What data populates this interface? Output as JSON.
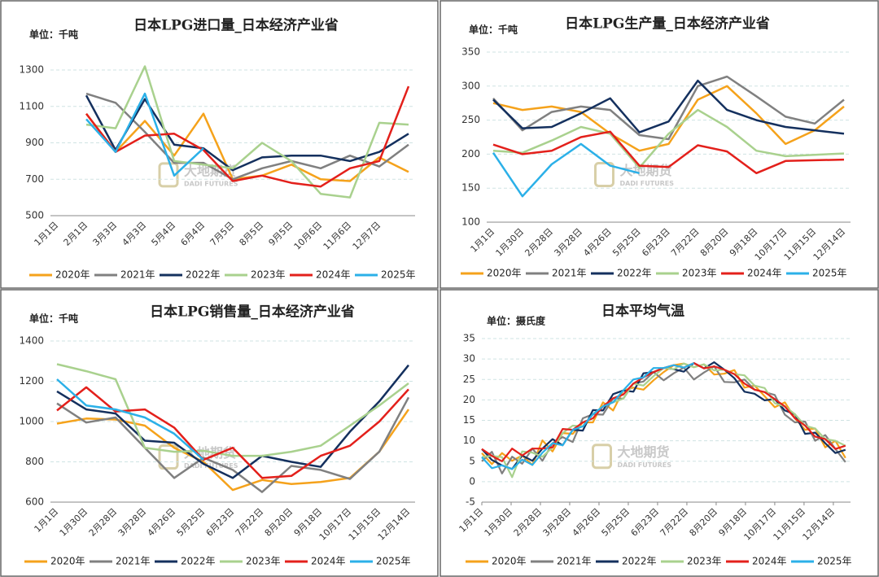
{
  "chart_data": [
    {
      "type": "line",
      "title": "日本LPG进口量_日本经济产业省",
      "unit": "单位：千吨",
      "watermark": "大地期货",
      "watermark_en": "DADI FUTURES",
      "categories": [
        "1月1日",
        "2月1日",
        "3月3日",
        "4月3日",
        "5月4日",
        "6月4日",
        "7月5日",
        "8月5日",
        "9月5日",
        "10月6日",
        "11月6日",
        "12月7日",
        null
      ],
      "ylim": [
        500,
        1300
      ],
      "yticks": [
        500,
        700,
        900,
        1100,
        1300
      ],
      "grid": true,
      "series": [
        {
          "name": "2020年",
          "color": "#f5a21b",
          "values": [
            null,
            1060,
            850,
            1020,
            830,
            1060,
            700,
            720,
            780,
            700,
            690,
            820,
            740
          ]
        },
        {
          "name": "2021年",
          "color": "#808080",
          "values": [
            null,
            1170,
            1120,
            960,
            790,
            790,
            700,
            760,
            800,
            760,
            830,
            770,
            890
          ]
        },
        {
          "name": "2022年",
          "color": "#14305e",
          "values": [
            null,
            1160,
            860,
            1140,
            890,
            870,
            750,
            820,
            830,
            830,
            800,
            850,
            950
          ]
        },
        {
          "name": "2023年",
          "color": "#a9d18e",
          "values": [
            null,
            1000,
            980,
            1320,
            800,
            780,
            760,
            900,
            800,
            620,
            600,
            1010,
            1000
          ]
        },
        {
          "name": "2024年",
          "color": "#e3201b",
          "values": [
            null,
            1060,
            850,
            940,
            950,
            860,
            690,
            720,
            680,
            660,
            760,
            800,
            1210
          ]
        },
        {
          "name": "2025年",
          "color": "#2bb0e8",
          "values": [
            null,
            1030,
            850,
            1170,
            720,
            870,
            null,
            null,
            null,
            null,
            null,
            null,
            null
          ]
        }
      ]
    },
    {
      "type": "line",
      "title": "日本LPG生产量_日本经济产业省",
      "unit": "单位：千吨",
      "watermark": "大地期货",
      "watermark_en": "DADI FUTURES",
      "categories": [
        "1月1日",
        "1月30日",
        "2月28日",
        "3月28日",
        "4月26日",
        "5月25日",
        "6月23日",
        "7月22日",
        "8月20日",
        "9月18日",
        "10月17日",
        "11月15日",
        "12月14日"
      ],
      "ylim": [
        100,
        350
      ],
      "yticks": [
        100,
        150,
        200,
        250,
        300,
        350
      ],
      "grid": true,
      "series": [
        {
          "name": "2020年",
          "color": "#f5a21b",
          "values": [
            275,
            265,
            270,
            262,
            230,
            205,
            215,
            280,
            300,
            260,
            215,
            235,
            270
          ]
        },
        {
          "name": "2021年",
          "color": "#808080",
          "values": [
            282,
            235,
            262,
            270,
            265,
            228,
            222,
            300,
            314,
            285,
            255,
            245,
            280
          ]
        },
        {
          "name": "2022年",
          "color": "#14305e",
          "values": [
            280,
            238,
            240,
            260,
            282,
            232,
            248,
            308,
            265,
            250,
            240,
            235,
            230
          ]
        },
        {
          "name": "2023年",
          "color": "#a9d18e",
          "values": [
            205,
            202,
            220,
            240,
            230,
            180,
            230,
            265,
            240,
            205,
            197,
            199,
            201
          ]
        },
        {
          "name": "2024年",
          "color": "#e3201b",
          "values": [
            214,
            200,
            205,
            225,
            233,
            183,
            181,
            213,
            204,
            172,
            190,
            191,
            192
          ]
        },
        {
          "name": "2025年",
          "color": "#2bb0e8",
          "values": [
            202,
            138,
            185,
            215,
            183,
            172,
            null,
            null,
            null,
            null,
            null,
            null,
            null
          ]
        }
      ]
    },
    {
      "type": "line",
      "title": "日本LPG销售量_日本经济产业省",
      "unit": "单位：千吨",
      "watermark": "大地期货",
      "watermark_en": "DADI FUTURES",
      "categories": [
        "1月1日",
        "1月30日",
        "2月28日",
        "3月28日",
        "4月26日",
        "5月25日",
        "6月23日",
        "7月22日",
        "8月20日",
        "9月18日",
        "10月17日",
        "11月15日",
        "12月14日"
      ],
      "ylim": [
        600,
        1400
      ],
      "yticks": [
        600,
        800,
        1000,
        1200,
        1400
      ],
      "grid": true,
      "series": [
        {
          "name": "2020年",
          "color": "#f5a21b",
          "values": [
            990,
            1015,
            1010,
            980,
            870,
            800,
            660,
            710,
            690,
            700,
            720,
            850,
            1060
          ]
        },
        {
          "name": "2021年",
          "color": "#808080",
          "values": [
            1090,
            995,
            1020,
            870,
            720,
            820,
            760,
            650,
            780,
            760,
            715,
            850,
            1120
          ]
        },
        {
          "name": "2022年",
          "color": "#14305e",
          "values": [
            1150,
            1060,
            1040,
            905,
            895,
            790,
            720,
            830,
            800,
            775,
            950,
            1100,
            1280
          ]
        },
        {
          "name": "2023年",
          "color": "#a9d18e",
          "values": [
            1285,
            1250,
            1210,
            870,
            850,
            855,
            830,
            830,
            850,
            880,
            980,
            1080,
            1190
          ]
        },
        {
          "name": "2024年",
          "color": "#e3201b",
          "values": [
            1055,
            1170,
            1050,
            1060,
            970,
            810,
            870,
            720,
            730,
            830,
            880,
            1000,
            1160
          ]
        },
        {
          "name": "2025年",
          "color": "#2bb0e8",
          "values": [
            1210,
            1080,
            1060,
            1020,
            940,
            810,
            null,
            null,
            null,
            null,
            null,
            null,
            null
          ]
        }
      ]
    },
    {
      "type": "line_numeric",
      "title": "日本平均气温",
      "unit": "单位：摄氏度",
      "watermark": "大地期货",
      "watermark_en": "DADI FUTURES",
      "x": [
        1,
        11,
        21,
        31,
        41,
        51,
        61,
        71,
        81,
        91,
        101,
        111,
        121,
        131,
        141,
        151,
        161,
        171,
        181,
        191,
        201,
        211,
        221,
        231,
        241,
        251,
        261,
        271,
        281,
        291,
        301,
        311,
        321,
        331,
        341,
        351,
        361
      ],
      "xlim": [
        1,
        366
      ],
      "xticks": [
        {
          "value": 1,
          "label": "1月1日"
        },
        {
          "value": 30,
          "label": "1月30日"
        },
        {
          "value": 59,
          "label": "2月28日"
        },
        {
          "value": 88,
          "label": "3月28日"
        },
        {
          "value": 117,
          "label": "4月26日"
        },
        {
          "value": 146,
          "label": "5月25日"
        },
        {
          "value": 175,
          "label": "6月23日"
        },
        {
          "value": 204,
          "label": "7月22日"
        },
        {
          "value": 233,
          "label": "8月20日"
        },
        {
          "value": 262,
          "label": "9月18日"
        },
        {
          "value": 291,
          "label": "10月17日"
        },
        {
          "value": 320,
          "label": "11月15日"
        },
        {
          "value": 349,
          "label": "12月14日"
        }
      ],
      "ylim": [
        -5,
        35
      ],
      "yticks": [
        -5,
        0,
        5,
        10,
        15,
        20,
        25,
        30,
        35
      ],
      "grid": true,
      "series": [
        {
          "name": "2020年",
          "color": "#f5a21b",
          "values": [
            7.0,
            4.3,
            7.0,
            5.1,
            6.4,
            4.1,
            10.1,
            7.4,
            11.9,
            11.7,
            14.5,
            14.5,
            19.4,
            17.4,
            22.3,
            23.0,
            22.5,
            24.8,
            26.8,
            28.5,
            28.9,
            28.0,
            28.7,
            26.2,
            26.4,
            27.3,
            23.0,
            23.5,
            20.9,
            18.2,
            19.4,
            15.5,
            12.7,
            13.0,
            8.4,
            10.0,
            5.8
          ]
        },
        {
          "name": "2021年",
          "color": "#808080",
          "values": [
            5.0,
            7.3,
            2.0,
            6.1,
            4.4,
            8.1,
            5.1,
            9.4,
            10.9,
            9.7,
            15.5,
            16.5,
            16.4,
            20.4,
            20.3,
            24.0,
            24.5,
            26.8,
            24.8,
            26.5,
            27.9,
            25.0,
            26.7,
            28.2,
            24.4,
            24.3,
            25.0,
            22.5,
            21.9,
            21.2,
            16.4,
            14.5,
            14.7,
            10.0,
            11.4,
            8.0,
            4.8
          ]
        },
        {
          "name": "2022年",
          "color": "#14305e",
          "values": [
            8.0,
            5.3,
            4.0,
            3.1,
            6.4,
            5.1,
            8.1,
            10.4,
            8.9,
            12.7,
            12.5,
            17.5,
            17.4,
            21.4,
            22.3,
            22.0,
            26.5,
            26.8,
            27.8,
            27.5,
            26.9,
            29.0,
            27.7,
            29.2,
            27.4,
            25.3,
            22.0,
            21.5,
            19.9,
            20.2,
            17.4,
            16.5,
            11.7,
            12.0,
            9.4,
            7.0,
            7.8
          ]
        },
        {
          "name": "2023年",
          "color": "#a9d18e",
          "values": [
            6.0,
            6.3,
            6.0,
            1.1,
            7.4,
            7.1,
            6.1,
            8.4,
            11.9,
            13.7,
            13.5,
            16.5,
            18.4,
            19.4,
            20.3,
            24.0,
            23.5,
            25.8,
            27.8,
            27.5,
            28.9,
            28.0,
            28.7,
            27.2,
            27.4,
            26.3,
            26.0,
            23.5,
            22.9,
            19.2,
            18.4,
            16.5,
            13.7,
            13.0,
            10.4,
            10.0,
            8.8
          ]
        },
        {
          "name": "2024年",
          "color": "#e3201b",
          "values": [
            8.0,
            6.3,
            5.0,
            8.1,
            6.4,
            8.1,
            8.1,
            8.4,
            12.9,
            12.7,
            14.5,
            15.5,
            18.4,
            20.4,
            21.3,
            24.0,
            25.5,
            26.8,
            27.8,
            28.5,
            27.9,
            29.0,
            27.7,
            28.2,
            27.4,
            26.3,
            24.0,
            22.5,
            21.9,
            20.2,
            18.4,
            15.5,
            13.7,
            11.0,
            10.4,
            8.0,
            8.8
          ]
        },
        {
          "name": "2025年",
          "color": "#2bb0e8",
          "values": [
            6.0,
            3.3,
            4.0,
            3.1,
            5.4,
            4.1,
            7.1,
            9.4,
            8.9,
            12.7,
            13.5,
            16.5,
            18.4,
            19.4,
            22.3,
            25.0,
            25.5,
            27.8,
            27.8,
            28.5,
            27.9,
            29.0,
            null,
            null,
            null,
            null,
            null,
            null,
            null,
            null,
            null,
            null,
            null,
            null,
            null,
            null,
            null
          ]
        }
      ]
    }
  ]
}
